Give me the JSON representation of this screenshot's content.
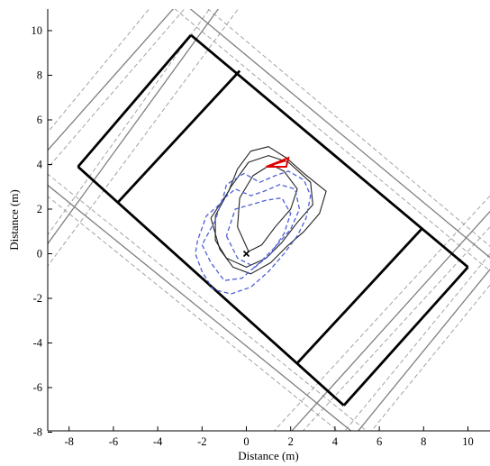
{
  "chart_data": {
    "type": "line",
    "title": "",
    "xlabel": "Distance (m)",
    "ylabel": "Distance (m)",
    "xlim": [
      -9,
      11
    ],
    "ylim": [
      -8,
      11
    ],
    "xticks": [
      -8,
      -6,
      -4,
      -2,
      0,
      2,
      4,
      6,
      8,
      10
    ],
    "yticks": [
      -8,
      -6,
      -4,
      -2,
      0,
      2,
      4,
      6,
      8,
      10
    ],
    "grid": false,
    "legend": "none",
    "colors": {
      "road": "#000000",
      "edge": "#7f7f7f",
      "black_trace": "#222222",
      "blue_trace": "#4d5fd6",
      "marker": "#e00000"
    },
    "road_segments": [
      [
        [
          -2.5,
          9.8
        ],
        [
          10.0,
          -0.6
        ]
      ],
      [
        [
          -7.6,
          3.9
        ],
        [
          4.4,
          -6.8
        ]
      ],
      [
        [
          -2.5,
          9.8
        ],
        [
          -7.6,
          3.9
        ]
      ],
      [
        [
          -0.3,
          8.2
        ],
        [
          -5.8,
          2.3
        ]
      ],
      [
        [
          7.9,
          1.1
        ],
        [
          2.3,
          -4.9
        ]
      ],
      [
        [
          10.0,
          -0.6
        ],
        [
          4.4,
          -6.8
        ]
      ]
    ],
    "dashed_lines": [
      [
        [
          -3.5,
          11.2
        ],
        [
          12.0,
          -1.6
        ]
      ],
      [
        [
          -2.0,
          11.2
        ],
        [
          12.0,
          -0.5
        ]
      ],
      [
        [
          -9.0,
          3.6
        ],
        [
          5.5,
          -8.0
        ]
      ],
      [
        [
          -9.0,
          2.6
        ],
        [
          4.2,
          -8.0
        ]
      ],
      [
        [
          -4.2,
          11.2
        ],
        [
          -9.0,
          5.4
        ]
      ],
      [
        [
          -2.6,
          11.2
        ],
        [
          -9.0,
          3.8
        ]
      ],
      [
        [
          -1.5,
          11.2
        ],
        [
          -9.0,
          0.8
        ]
      ],
      [
        [
          -0.2,
          11.2
        ],
        [
          -9.0,
          -0.6
        ]
      ],
      [
        [
          11.0,
          1.2
        ],
        [
          2.5,
          -8.0
        ]
      ],
      [
        [
          11.0,
          2.6
        ],
        [
          1.2,
          -8.0
        ]
      ],
      [
        [
          11.0,
          -1.4
        ],
        [
          5.6,
          -8.0
        ]
      ],
      [
        [
          11.0,
          0.0
        ],
        [
          4.4,
          -8.0
        ]
      ]
    ],
    "grey_lines": [
      [
        [
          -3.1,
          11.2
        ],
        [
          -9.0,
          4.6
        ]
      ],
      [
        [
          -1.1,
          11.2
        ],
        [
          -9.0,
          0.4
        ]
      ],
      [
        [
          11.0,
          1.9
        ],
        [
          2.0,
          -8.0
        ]
      ],
      [
        [
          11.0,
          -0.7
        ],
        [
          5.0,
          -8.0
        ]
      ],
      [
        [
          -9.0,
          3.1
        ],
        [
          4.8,
          -8.0
        ]
      ],
      [
        [
          -2.8,
          11.2
        ],
        [
          12.0,
          -1.0
        ]
      ]
    ],
    "series": [
      {
        "type": "line",
        "color": "#222222",
        "points": [
          [
            -1.6,
            1.6
          ],
          [
            -0.8,
            2.8
          ],
          [
            -0.4,
            3.8
          ],
          [
            0.2,
            4.6
          ],
          [
            1.0,
            4.8
          ],
          [
            1.8,
            4.3
          ],
          [
            2.6,
            3.6
          ],
          [
            3.6,
            2.8
          ],
          [
            3.3,
            1.8
          ],
          [
            2.6,
            1.0
          ],
          [
            1.8,
            0.3
          ],
          [
            1.1,
            -0.4
          ],
          [
            0.2,
            -0.9
          ],
          [
            -0.6,
            -0.6
          ],
          [
            -1.2,
            0.2
          ],
          [
            -1.6,
            1.6
          ]
        ]
      },
      {
        "type": "line",
        "color": "#222222",
        "points": [
          [
            -1.4,
            1.7
          ],
          [
            -0.7,
            3.0
          ],
          [
            0.1,
            4.1
          ],
          [
            1.0,
            4.4
          ],
          [
            1.9,
            4.1
          ],
          [
            2.9,
            3.2
          ],
          [
            3.0,
            2.2
          ],
          [
            2.3,
            1.4
          ],
          [
            1.6,
            0.5
          ],
          [
            0.9,
            -0.2
          ],
          [
            0.0,
            -0.6
          ],
          [
            -0.9,
            -0.2
          ],
          [
            -1.4,
            0.6
          ],
          [
            -1.4,
            1.7
          ]
        ]
      },
      {
        "type": "line",
        "color": "#222222",
        "points": [
          [
            0.1,
            0.1
          ],
          [
            -0.4,
            1.2
          ],
          [
            -0.3,
            2.5
          ],
          [
            0.3,
            3.5
          ],
          [
            1.1,
            4.0
          ],
          [
            1.7,
            3.7
          ],
          [
            2.3,
            2.9
          ],
          [
            2.0,
            2.0
          ],
          [
            1.3,
            1.2
          ],
          [
            0.7,
            0.4
          ],
          [
            0.1,
            0.1
          ]
        ]
      },
      {
        "type": "dashed",
        "color": "#4d5fd6",
        "points": [
          [
            -2.2,
            0.6
          ],
          [
            -2.3,
            0.0
          ],
          [
            -2.0,
            -0.8
          ],
          [
            -1.5,
            -1.6
          ],
          [
            -0.7,
            -1.8
          ],
          [
            0.2,
            -1.5
          ],
          [
            1.0,
            -0.8
          ],
          [
            1.7,
            0.0
          ],
          [
            2.3,
            0.8
          ],
          [
            2.7,
            1.6
          ],
          [
            2.9,
            2.6
          ],
          [
            2.6,
            3.3
          ],
          [
            1.9,
            3.7
          ],
          [
            1.3,
            3.5
          ],
          [
            0.6,
            3.2
          ],
          [
            -0.1,
            3.6
          ],
          [
            -0.9,
            3.1
          ],
          [
            -1.1,
            2.3
          ],
          [
            -1.8,
            1.7
          ],
          [
            -2.2,
            0.6
          ]
        ]
      },
      {
        "type": "dashed",
        "color": "#4d5fd6",
        "points": [
          [
            -2.0,
            0.4
          ],
          [
            -1.6,
            -0.4
          ],
          [
            -1.0,
            -1.2
          ],
          [
            -0.2,
            -1.1
          ],
          [
            0.6,
            -0.4
          ],
          [
            1.3,
            0.3
          ],
          [
            2.0,
            1.1
          ],
          [
            2.4,
            2.0
          ],
          [
            2.2,
            2.9
          ],
          [
            1.5,
            3.1
          ],
          [
            0.8,
            2.8
          ],
          [
            0.2,
            2.6
          ],
          [
            -0.5,
            2.9
          ],
          [
            -1.1,
            2.4
          ],
          [
            -1.4,
            1.5
          ],
          [
            -2.0,
            0.4
          ]
        ]
      },
      {
        "type": "dashed",
        "color": "#4d5fd6",
        "points": [
          [
            -0.9,
            0.8
          ],
          [
            -0.4,
            -0.2
          ],
          [
            0.4,
            -0.6
          ],
          [
            1.1,
            0.0
          ],
          [
            1.7,
            0.9
          ],
          [
            2.0,
            1.8
          ],
          [
            1.6,
            2.5
          ],
          [
            0.9,
            2.4
          ],
          [
            0.2,
            2.2
          ],
          [
            -0.5,
            2.0
          ],
          [
            -0.9,
            0.8
          ]
        ]
      }
    ],
    "triangle": [
      [
        0.9,
        3.9
      ],
      [
        1.9,
        4.3
      ],
      [
        1.8,
        3.9
      ]
    ],
    "start_point": [
      0.0,
      0.0
    ]
  }
}
